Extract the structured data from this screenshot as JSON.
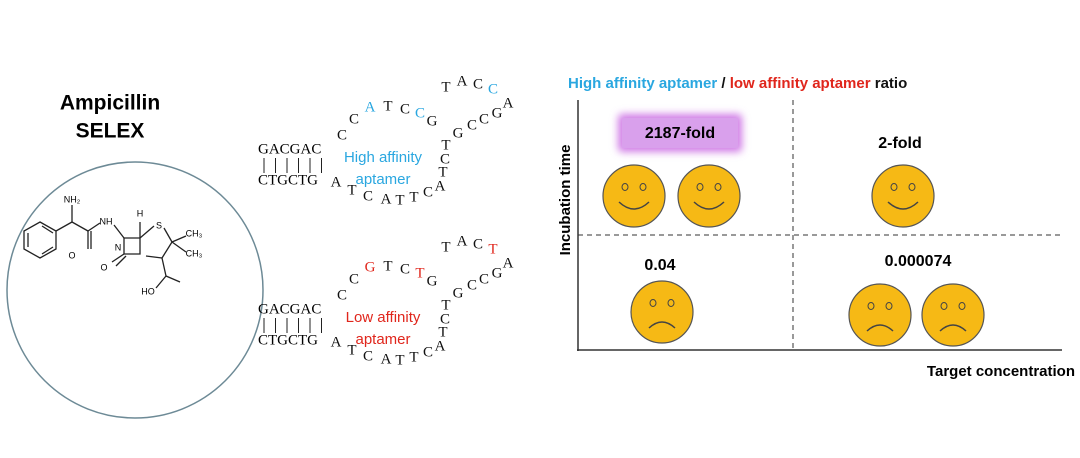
{
  "left": {
    "title_line1": "Ampicillin",
    "title_line2": "SELEX",
    "molecule_labels": [
      "NH₂",
      "NH",
      "H",
      "S",
      "CH₃",
      "CH₃",
      "N",
      "O",
      "O",
      "HO"
    ]
  },
  "aptamers": [
    {
      "stem_top": "GACGAC",
      "stem_bottom": "CTGCTG",
      "label_line1": "High affinity",
      "label_line2": "aptamer",
      "loop": [
        "C",
        "C",
        "A",
        "T",
        "C",
        "C",
        "G",
        "T",
        "A",
        "C",
        "C",
        "A",
        "G",
        "C",
        "C",
        "G",
        "T",
        "C",
        "T",
        "A",
        "C",
        "T",
        "T",
        "A",
        "C",
        "T",
        "A"
      ]
    },
    {
      "stem_top": "GACGAC",
      "stem_bottom": "CTGCTG",
      "label_line1": "Low affinity",
      "label_line2": "aptamer",
      "loop": [
        "C",
        "C",
        "G",
        "T",
        "C",
        "T",
        "G",
        "T",
        "A",
        "C",
        "T",
        "A",
        "G",
        "C",
        "C",
        "G",
        "T",
        "C",
        "T",
        "A",
        "C",
        "T",
        "T",
        "A",
        "C",
        "T",
        "A"
      ]
    }
  ],
  "ratio_panel": {
    "title_parts": [
      "High affinity aptamer",
      " / ",
      "low affinity aptamer",
      " ratio"
    ],
    "y_axis_label": "Incubation time",
    "x_axis_label": "Target concentration",
    "quadrants": [
      "2187-fold",
      "2-fold",
      "0.04",
      "0.000074"
    ]
  }
}
